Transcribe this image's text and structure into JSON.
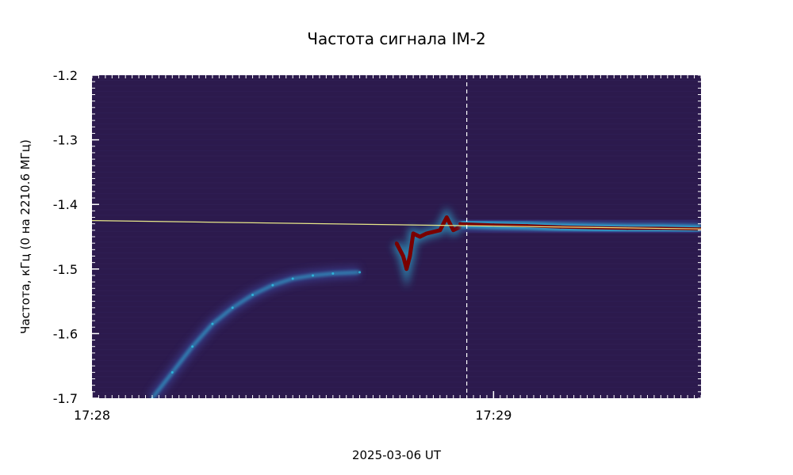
{
  "chart_data": {
    "type": "heatmap",
    "title": "Частота сигнала IM-2",
    "xlabel": "2025-03-06 UT",
    "ylabel": "Частота, кГц  (0 на 2210.6 МГц)",
    "x_range": [
      "17:28:00",
      "17:29:31"
    ],
    "ylim": [
      -1.7,
      -1.2
    ],
    "y_ticks": [
      -1.2,
      -1.3,
      -1.4,
      -1.5,
      -1.6,
      -1.7
    ],
    "y_tick_labels": [
      "-1.2",
      "-1.3",
      "-1.4",
      "-1.5",
      "-1.6",
      "-1.7"
    ],
    "x_ticks": [
      {
        "time": "17:28:00",
        "label": "17:28"
      },
      {
        "time": "17:29:00",
        "label": "17:29"
      }
    ],
    "colors": {
      "background": "#2c1a4d",
      "weak_signal": "#3f4ea8",
      "medium_signal": "#2ec4e6",
      "strong_signal": "#7a0000",
      "fit_line": "#e8e88a",
      "marker_line": "#ffffff"
    },
    "vertical_marker": {
      "time": "17:28:56",
      "style": "dashed"
    },
    "fit_line": {
      "start": {
        "time": "17:28:00",
        "freq": -1.425
      },
      "end": {
        "time": "17:29:31",
        "freq": -1.438
      }
    },
    "features": {
      "early_drift": [
        {
          "time": "17:28:09",
          "freq": -1.7
        },
        {
          "time": "17:28:12",
          "freq": -1.66
        },
        {
          "time": "17:28:15",
          "freq": -1.62
        },
        {
          "time": "17:28:18",
          "freq": -1.585
        },
        {
          "time": "17:28:21",
          "freq": -1.56
        },
        {
          "time": "17:28:24",
          "freq": -1.54
        },
        {
          "time": "17:28:27",
          "freq": -1.525
        },
        {
          "time": "17:28:30",
          "freq": -1.515
        },
        {
          "time": "17:28:33",
          "freq": -1.51
        },
        {
          "time": "17:28:36",
          "freq": -1.507
        },
        {
          "time": "17:28:40",
          "freq": -1.505
        }
      ],
      "burst": [
        {
          "time": "17:28:45.5",
          "freq": -1.46
        },
        {
          "time": "17:28:46.5",
          "freq": -1.48
        },
        {
          "time": "17:28:47",
          "freq": -1.5
        },
        {
          "time": "17:28:47.5",
          "freq": -1.48
        },
        {
          "time": "17:28:48",
          "freq": -1.445
        },
        {
          "time": "17:28:49",
          "freq": -1.45
        },
        {
          "time": "17:28:50",
          "freq": -1.445
        },
        {
          "time": "17:28:52",
          "freq": -1.44
        },
        {
          "time": "17:28:53",
          "freq": -1.42
        },
        {
          "time": "17:28:54",
          "freq": -1.44
        },
        {
          "time": "17:28:55",
          "freq": -1.435
        }
      ],
      "stable_band": [
        {
          "time": "17:28:55",
          "freq": -1.43
        },
        {
          "time": "17:29:00",
          "freq": -1.432
        },
        {
          "time": "17:29:05",
          "freq": -1.433
        },
        {
          "time": "17:29:10",
          "freq": -1.435
        },
        {
          "time": "17:29:15",
          "freq": -1.436
        },
        {
          "time": "17:29:20",
          "freq": -1.437
        },
        {
          "time": "17:29:25",
          "freq": -1.437
        },
        {
          "time": "17:29:31",
          "freq": -1.438
        }
      ]
    },
    "grid": false,
    "legend": "none"
  }
}
